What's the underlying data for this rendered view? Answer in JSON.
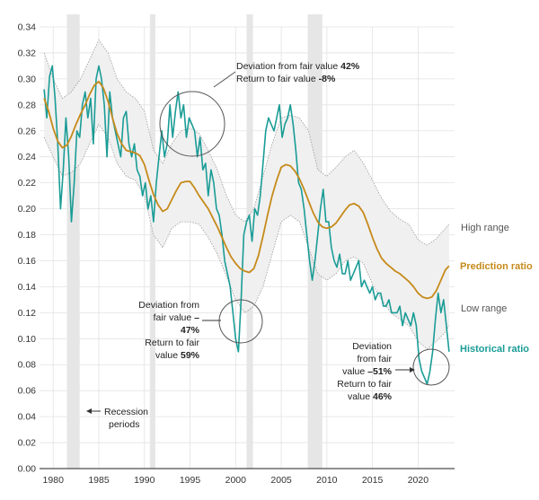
{
  "chart_data": {
    "type": "line",
    "title": "",
    "xlabel": "",
    "ylabel": "",
    "xlim": [
      1978.5,
      2024
    ],
    "ylim": [
      0,
      0.34
    ],
    "x_ticks": [
      "1980",
      "1985",
      "1990",
      "1995",
      "2000",
      "2005",
      "2010",
      "2015",
      "2020"
    ],
    "y_ticks": [
      "0.00",
      "0.02",
      "0.04",
      "0.06",
      "0.08",
      "0.10",
      "0.12",
      "0.14",
      "0.16",
      "0.18",
      "0.20",
      "0.22",
      "0.24",
      "0.26",
      "0.28",
      "0.30",
      "0.32",
      "0.34"
    ],
    "colors": {
      "historical": "#1a9c96",
      "prediction": "#c68a1a",
      "range_fill": "#f0f0f0",
      "range_line": "#9a9a9a",
      "recession": "#e6e6e6",
      "grid": "#e2e2e2"
    },
    "recession_periods": [
      [
        1981.5,
        1982.9
      ],
      [
        1990.6,
        1991.2
      ],
      [
        2001.2,
        2001.9
      ],
      [
        2007.9,
        2009.5
      ]
    ],
    "series": [
      {
        "name": "Historical ratio",
        "x": [
          1979.0,
          1979.3,
          1979.6,
          1979.9,
          1980.2,
          1980.5,
          1980.8,
          1981.1,
          1981.4,
          1981.7,
          1982.0,
          1982.3,
          1982.6,
          1982.9,
          1983.2,
          1983.5,
          1983.8,
          1984.1,
          1984.4,
          1984.7,
          1985.0,
          1985.3,
          1985.6,
          1985.9,
          1986.2,
          1986.5,
          1986.8,
          1987.1,
          1987.4,
          1987.7,
          1988.0,
          1988.3,
          1988.6,
          1988.9,
          1989.2,
          1989.5,
          1989.8,
          1990.1,
          1990.4,
          1990.7,
          1991.0,
          1991.3,
          1991.6,
          1991.9,
          1992.2,
          1992.5,
          1992.8,
          1993.1,
          1993.4,
          1993.7,
          1994.0,
          1994.3,
          1994.6,
          1994.9,
          1995.2,
          1995.5,
          1995.8,
          1996.1,
          1996.4,
          1996.7,
          1997.0,
          1997.3,
          1997.6,
          1997.9,
          1998.2,
          1998.5,
          1998.8,
          1999.1,
          1999.4,
          1999.7,
          2000.0,
          2000.3,
          2000.6,
          2000.9,
          2001.2,
          2001.5,
          2001.8,
          2002.1,
          2002.4,
          2002.7,
          2003.0,
          2003.3,
          2003.6,
          2003.9,
          2004.2,
          2004.5,
          2004.8,
          2005.1,
          2005.4,
          2005.7,
          2006.0,
          2006.3,
          2006.6,
          2006.9,
          2007.2,
          2007.5,
          2007.8,
          2008.1,
          2008.4,
          2008.7,
          2009.0,
          2009.3,
          2009.6,
          2009.9,
          2010.2,
          2010.5,
          2010.8,
          2011.1,
          2011.4,
          2011.7,
          2012.0,
          2012.3,
          2012.6,
          2012.9,
          2013.2,
          2013.5,
          2013.8,
          2014.1,
          2014.4,
          2014.7,
          2015.0,
          2015.3,
          2015.6,
          2015.9,
          2016.2,
          2016.5,
          2016.8,
          2017.1,
          2017.4,
          2017.7,
          2018.0,
          2018.3,
          2018.6,
          2018.9,
          2019.2,
          2019.5,
          2019.8,
          2020.1,
          2020.4,
          2020.7,
          2021.0,
          2021.3,
          2021.6,
          2021.9,
          2022.2,
          2022.5,
          2022.8,
          2023.1,
          2023.4
        ],
        "values": [
          0.292,
          0.27,
          0.302,
          0.31,
          0.285,
          0.25,
          0.2,
          0.23,
          0.27,
          0.24,
          0.19,
          0.22,
          0.26,
          0.255,
          0.28,
          0.29,
          0.27,
          0.285,
          0.25,
          0.3,
          0.31,
          0.3,
          0.28,
          0.24,
          0.29,
          0.27,
          0.26,
          0.25,
          0.24,
          0.27,
          0.275,
          0.25,
          0.24,
          0.25,
          0.23,
          0.225,
          0.21,
          0.22,
          0.2,
          0.21,
          0.19,
          0.22,
          0.24,
          0.26,
          0.24,
          0.25,
          0.28,
          0.255,
          0.275,
          0.29,
          0.27,
          0.28,
          0.255,
          0.27,
          0.265,
          0.26,
          0.24,
          0.255,
          0.23,
          0.235,
          0.21,
          0.23,
          0.22,
          0.2,
          0.195,
          0.18,
          0.16,
          0.15,
          0.14,
          0.12,
          0.1,
          0.09,
          0.13,
          0.18,
          0.19,
          0.195,
          0.175,
          0.2,
          0.195,
          0.21,
          0.235,
          0.26,
          0.27,
          0.265,
          0.26,
          0.27,
          0.28,
          0.255,
          0.265,
          0.27,
          0.28,
          0.265,
          0.245,
          0.22,
          0.215,
          0.2,
          0.18,
          0.16,
          0.145,
          0.16,
          0.18,
          0.2,
          0.215,
          0.19,
          0.19,
          0.17,
          0.16,
          0.155,
          0.165,
          0.15,
          0.15,
          0.16,
          0.145,
          0.15,
          0.155,
          0.16,
          0.14,
          0.145,
          0.14,
          0.135,
          0.14,
          0.13,
          0.135,
          0.135,
          0.125,
          0.125,
          0.13,
          0.12,
          0.12,
          0.12,
          0.125,
          0.11,
          0.12,
          0.115,
          0.11,
          0.12,
          0.11,
          0.085,
          0.075,
          0.07,
          0.065,
          0.075,
          0.09,
          0.115,
          0.135,
          0.12,
          0.13,
          0.11,
          0.09
        ]
      },
      {
        "name": "Prediction ratio",
        "x": [
          1979.0,
          1979.5,
          1980.0,
          1980.5,
          1981.0,
          1981.5,
          1982.0,
          1982.5,
          1983.0,
          1983.5,
          1984.0,
          1984.5,
          1985.0,
          1985.5,
          1986.0,
          1986.5,
          1987.0,
          1987.5,
          1988.0,
          1988.5,
          1989.0,
          1989.5,
          1990.0,
          1990.5,
          1991.0,
          1991.5,
          1992.0,
          1992.5,
          1993.0,
          1993.5,
          1994.0,
          1994.5,
          1995.0,
          1995.5,
          1996.0,
          1996.5,
          1997.0,
          1997.5,
          1998.0,
          1998.5,
          1999.0,
          1999.5,
          2000.0,
          2000.5,
          2001.0,
          2001.5,
          2002.0,
          2002.5,
          2003.0,
          2003.5,
          2004.0,
          2004.5,
          2005.0,
          2005.5,
          2006.0,
          2006.5,
          2007.0,
          2007.5,
          2008.0,
          2008.5,
          2009.0,
          2009.5,
          2010.0,
          2010.5,
          2011.0,
          2011.5,
          2012.0,
          2012.5,
          2013.0,
          2013.5,
          2014.0,
          2014.5,
          2015.0,
          2015.5,
          2016.0,
          2016.5,
          2017.0,
          2017.5,
          2018.0,
          2018.5,
          2019.0,
          2019.5,
          2020.0,
          2020.5,
          2021.0,
          2021.5,
          2022.0,
          2022.5,
          2023.0,
          2023.4
        ],
        "values": [
          0.285,
          0.275,
          0.262,
          0.252,
          0.247,
          0.249,
          0.256,
          0.265,
          0.273,
          0.28,
          0.288,
          0.295,
          0.298,
          0.293,
          0.283,
          0.27,
          0.258,
          0.25,
          0.245,
          0.244,
          0.243,
          0.241,
          0.234,
          0.222,
          0.211,
          0.203,
          0.198,
          0.2,
          0.207,
          0.214,
          0.22,
          0.221,
          0.221,
          0.216,
          0.21,
          0.205,
          0.2,
          0.193,
          0.186,
          0.178,
          0.17,
          0.163,
          0.158,
          0.154,
          0.152,
          0.151,
          0.154,
          0.164,
          0.179,
          0.195,
          0.21,
          0.222,
          0.232,
          0.234,
          0.233,
          0.229,
          0.223,
          0.215,
          0.206,
          0.197,
          0.19,
          0.186,
          0.185,
          0.186,
          0.189,
          0.194,
          0.199,
          0.203,
          0.204,
          0.202,
          0.197,
          0.188,
          0.178,
          0.169,
          0.162,
          0.158,
          0.155,
          0.152,
          0.15,
          0.147,
          0.144,
          0.14,
          0.135,
          0.132,
          0.131,
          0.132,
          0.137,
          0.145,
          0.153,
          0.156
        ]
      }
    ],
    "range_band": {
      "x": [
        1979.0,
        1980.0,
        1981.0,
        1982.0,
        1983.0,
        1984.0,
        1985.0,
        1986.0,
        1987.0,
        1988.0,
        1989.0,
        1990.0,
        1991.0,
        1992.0,
        1993.0,
        1994.0,
        1995.0,
        1996.0,
        1997.0,
        1998.0,
        1999.0,
        2000.0,
        2001.0,
        2002.0,
        2003.0,
        2004.0,
        2005.0,
        2006.0,
        2007.0,
        2008.0,
        2009.0,
        2010.0,
        2011.0,
        2012.0,
        2013.0,
        2014.0,
        2015.0,
        2016.0,
        2017.0,
        2018.0,
        2019.0,
        2020.0,
        2021.0,
        2022.0,
        2023.0,
        2023.4
      ],
      "high": [
        0.32,
        0.3,
        0.285,
        0.29,
        0.3,
        0.315,
        0.33,
        0.32,
        0.3,
        0.29,
        0.285,
        0.275,
        0.245,
        0.235,
        0.25,
        0.26,
        0.262,
        0.258,
        0.245,
        0.23,
        0.21,
        0.195,
        0.19,
        0.2,
        0.225,
        0.25,
        0.27,
        0.272,
        0.27,
        0.26,
        0.23,
        0.225,
        0.232,
        0.24,
        0.245,
        0.235,
        0.222,
        0.208,
        0.198,
        0.192,
        0.188,
        0.176,
        0.172,
        0.177,
        0.185,
        0.188
      ],
      "low": [
        0.255,
        0.24,
        0.225,
        0.228,
        0.235,
        0.25,
        0.265,
        0.255,
        0.235,
        0.225,
        0.222,
        0.21,
        0.18,
        0.17,
        0.185,
        0.19,
        0.19,
        0.188,
        0.178,
        0.165,
        0.148,
        0.13,
        0.12,
        0.125,
        0.14,
        0.165,
        0.19,
        0.195,
        0.19,
        0.17,
        0.15,
        0.145,
        0.15,
        0.16,
        0.163,
        0.158,
        0.142,
        0.13,
        0.12,
        0.115,
        0.11,
        0.098,
        0.092,
        0.098,
        0.105,
        0.11
      ]
    },
    "legend": {
      "high_range": "High range",
      "prediction_ratio": "Prediction ratio",
      "low_range": "Low range",
      "historical_ratio": "Historical ratio",
      "recession_periods_line1": "Recession",
      "recession_periods_line2": "periods"
    },
    "annotations": {
      "a1_line1_text": "Deviation from fair value ",
      "a1_line1_bold": "42%",
      "a1_line2_text": "Return to fair value ",
      "a1_line2_bold": "-8%",
      "a2_line1": "Deviation from",
      "a2_line2_text": "fair value ",
      "a2_line2_bold": "–",
      "a2_line3_bold": "47%",
      "a2_line4": "Return to fair",
      "a2_line5_text": "value ",
      "a2_line5_bold": "59%",
      "a3_line1": "Deviation",
      "a3_line2": "from fair",
      "a3_line3_text": "value ",
      "a3_line3_bold": "–51%",
      "a3_line4": "Return to fair",
      "a3_line5_text": "value ",
      "a3_line5_bold": "46%"
    }
  }
}
